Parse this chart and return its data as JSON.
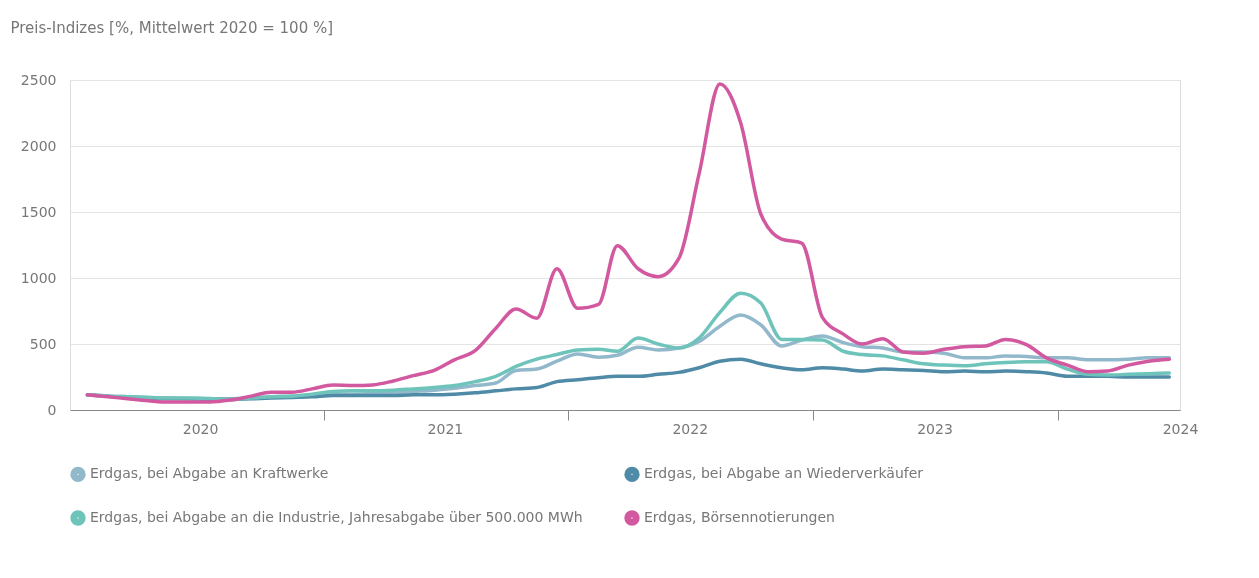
{
  "chart_data": {
    "type": "line",
    "ylabel": "Preis-Indizes [%, Mittelwert 2020 = 100 %]",
    "x": [
      "2020-01-15",
      "2020-02-15",
      "2020-03-15",
      "2020-04-15",
      "2020-05-15",
      "2020-06-15",
      "2020-07-15",
      "2020-08-15",
      "2020-09-15",
      "2020-10-15",
      "2020-11-15",
      "2020-12-15",
      "2021-01-15",
      "2021-02-15",
      "2021-03-15",
      "2021-04-15",
      "2021-05-15",
      "2021-06-15",
      "2021-07-15",
      "2021-08-15",
      "2021-09-15",
      "2021-10-15",
      "2021-11-15",
      "2021-12-15",
      "2022-01-15",
      "2022-02-15",
      "2022-03-15",
      "2022-04-15",
      "2022-05-15",
      "2022-06-15",
      "2022-07-15",
      "2022-08-15",
      "2022-09-15",
      "2022-10-15",
      "2022-11-15",
      "2022-12-15",
      "2023-01-15",
      "2023-02-15",
      "2023-03-15",
      "2023-04-15",
      "2023-05-15",
      "2023-06-15",
      "2023-07-15",
      "2023-08-15",
      "2023-09-15",
      "2023-10-15",
      "2023-11-15",
      "2023-12-15",
      "2024-01-15",
      "2024-02-15",
      "2024-03-15",
      "2024-04-15",
      "2024-05-15",
      "2024-06-15"
    ],
    "series": [
      {
        "name": "Erdgas, bei Abgabe an Kraftwerke",
        "color": "#92b8cb",
        "values": [
          115,
          105,
          100,
          95,
          90,
          88,
          85,
          85,
          90,
          100,
          105,
          110,
          120,
          120,
          125,
          130,
          140,
          150,
          165,
          185,
          205,
          300,
          310,
          370,
          425,
          400,
          415,
          475,
          455,
          470,
          520,
          635,
          720,
          645,
          485,
          530,
          560,
          510,
          480,
          470,
          440,
          440,
          430,
          395,
          395,
          410,
          405,
          395,
          395,
          380,
          380,
          385,
          395,
          395
        ]
      },
      {
        "name": "Erdgas, bei Abgabe an Wiederverkäufer",
        "color": "#4f8ba6",
        "values": [
          115,
          105,
          95,
          90,
          85,
          85,
          80,
          80,
          85,
          90,
          95,
          100,
          110,
          110,
          110,
          110,
          115,
          115,
          120,
          130,
          145,
          160,
          170,
          215,
          230,
          245,
          255,
          255,
          270,
          285,
          320,
          370,
          385,
          350,
          320,
          305,
          320,
          310,
          295,
          310,
          305,
          300,
          290,
          295,
          290,
          295,
          290,
          280,
          255,
          255,
          255,
          250,
          250,
          250
        ]
      },
      {
        "name": "Erdgas, bei Abgabe an die Industrie, Jahresabgabe über 500.000 MWh",
        "color": "#6ec4bb",
        "values": [
          115,
          105,
          100,
          95,
          90,
          90,
          88,
          80,
          90,
          100,
          105,
          120,
          140,
          145,
          145,
          150,
          160,
          170,
          185,
          215,
          255,
          330,
          385,
          420,
          455,
          460,
          445,
          545,
          500,
          470,
          545,
          740,
          885,
          810,
          535,
          535,
          530,
          445,
          420,
          410,
          380,
          350,
          340,
          335,
          350,
          360,
          365,
          365,
          310,
          270,
          265,
          270,
          275,
          280
        ]
      },
      {
        "name": "Erdgas, Börsennotierungen",
        "color": "#d2589f",
        "values": [
          115,
          100,
          85,
          70,
          60,
          60,
          60,
          75,
          105,
          135,
          135,
          160,
          190,
          185,
          190,
          220,
          260,
          300,
          380,
          450,
          620,
          765,
          695,
          1070,
          770,
          800,
          1245,
          1070,
          1010,
          1150,
          1790,
          2470,
          2175,
          1485,
          1295,
          1265,
          700,
          575,
          500,
          540,
          440,
          430,
          460,
          480,
          485,
          535,
          495,
          395,
          340,
          290,
          295,
          340,
          370,
          385
        ]
      }
    ],
    "xlim": [
      "2019-12-20",
      "2024-07-01"
    ],
    "xticks": [
      {
        "value": "2020-07-01",
        "label": "2020"
      },
      {
        "value": "2021-01-01",
        "label": null
      },
      {
        "value": "2021-07-01",
        "label": "2021"
      },
      {
        "value": "2022-01-01",
        "label": null
      },
      {
        "value": "2022-07-01",
        "label": "2022"
      },
      {
        "value": "2023-01-01",
        "label": null
      },
      {
        "value": "2023-07-01",
        "label": "2023"
      },
      {
        "value": "2024-01-01",
        "label": null
      },
      {
        "value": "2024-07-01",
        "label": "2024"
      }
    ],
    "ylim": [
      0,
      2500
    ],
    "yticks": [
      0,
      500,
      1000,
      1500,
      2000,
      2500
    ],
    "grid": "y",
    "legend": "bottom",
    "marker": "none",
    "line_style": "solid"
  }
}
